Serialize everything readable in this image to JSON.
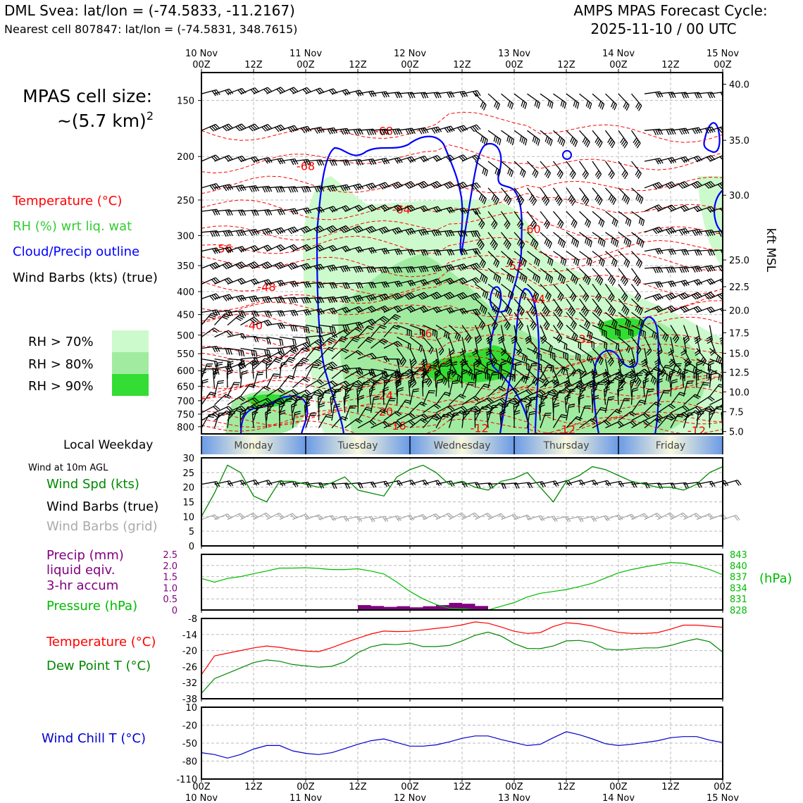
{
  "header": {
    "title": "DML Svea: lat/lon = (-74.5833, -11.2167)",
    "subtitle": "Nearest cell 807847: lat/lon = (-74.5831, 348.7615)",
    "cycle_line1": "AMPS MPAS Forecast Cycle:",
    "cycle_line2": "2025-11-10 / 00 UTC"
  },
  "left_legend": {
    "cell_size_line1": "MPAS cell size:",
    "cell_size_line2": "~(5.7 km)",
    "cell_size_exp": "2",
    "temperature": "Temperature (°C)",
    "rh": "RH (%) wrt liq. wat",
    "cloud": "Cloud/Precip outline",
    "wind": "Wind Barbs (kts) (true)",
    "rh70": "RH > 70%",
    "rh80": "RH > 80%",
    "rh90": "RH > 90%",
    "rh_colors": [
      "#ccfacc",
      "#a0eba0",
      "#33dd33"
    ],
    "local_weekday": "Local Weekday",
    "wind10m": "Wind at 10m AGL",
    "wind_spd": "Wind Spd (kts)",
    "wind_barbs_true": "Wind Barbs (true)",
    "wind_barbs_grid": "Wind Barbs (grid)",
    "precip1": "Precip (mm)",
    "precip2": "liquid eqiv.",
    "precip3": "3-hr accum",
    "pressure": "Pressure (hPa)",
    "temp2": "Temperature (°C)",
    "dew": "Dew Point T (°C)",
    "chill": "Wind Chill T (°C)"
  },
  "colors": {
    "temperature": "#ff0000",
    "rh_label": "#33cc33",
    "cloud": "#0000ff",
    "wind_spd": "#008800",
    "barbs_grid": "#aaaaaa",
    "precip": "#800080",
    "pressure": "#00bb00",
    "dew": "#008800",
    "chill": "#0000cc"
  },
  "chart_data": [
    {
      "type": "heatmap",
      "name": "cross-section",
      "x_ticks_top": [
        {
          "l1": "10 Nov",
          "l2": "00Z",
          "h": 0
        },
        {
          "l1": "",
          "l2": "12Z",
          "h": 12
        },
        {
          "l1": "11 Nov",
          "l2": "00Z",
          "h": 24
        },
        {
          "l1": "",
          "l2": "12Z",
          "h": 36
        },
        {
          "l1": "12 Nov",
          "l2": "00Z",
          "h": 48
        },
        {
          "l1": "",
          "l2": "12Z",
          "h": 60
        },
        {
          "l1": "13 Nov",
          "l2": "00Z",
          "h": 72
        },
        {
          "l1": "",
          "l2": "12Z",
          "h": 84
        },
        {
          "l1": "14 Nov",
          "l2": "00Z",
          "h": 96
        },
        {
          "l1": "",
          "l2": "12Z",
          "h": 108
        },
        {
          "l1": "15 Nov",
          "l2": "00Z",
          "h": 120
        }
      ],
      "xlim_hours": [
        0,
        120
      ],
      "y_pressure_ticks": [
        150,
        200,
        250,
        300,
        350,
        400,
        450,
        500,
        550,
        600,
        650,
        700,
        750,
        800
      ],
      "y_pressure_range": [
        130,
        830
      ],
      "y_right_label": "kft MSL",
      "y_right_ticks": [
        {
          "label": "40.0",
          "p": 138
        },
        {
          "label": "35.0",
          "p": 184
        },
        {
          "label": "30.0",
          "p": 244
        },
        {
          "label": "25.0",
          "p": 340
        },
        {
          "label": "22.5",
          "p": 390
        },
        {
          "label": "20.0",
          "p": 440
        },
        {
          "label": "17.5",
          "p": 494
        },
        {
          "label": "15.0",
          "p": 549
        },
        {
          "label": "12.5",
          "p": 605
        },
        {
          "label": "10.0",
          "p": 669
        },
        {
          "label": "7.5",
          "p": 741
        },
        {
          "label": "5.0",
          "p": 820
        }
      ],
      "temperature_labels": [
        {
          "text": "-68",
          "h": 24,
          "p": 210
        },
        {
          "text": "-68",
          "h": 42,
          "p": 175
        },
        {
          "text": "-64",
          "h": 46,
          "p": 262
        },
        {
          "text": "-60",
          "h": 76,
          "p": 290
        },
        {
          "text": "-56",
          "h": 5,
          "p": 320
        },
        {
          "text": "-52",
          "h": 72,
          "p": 350
        },
        {
          "text": "-48",
          "h": 15,
          "p": 390
        },
        {
          "text": "-44",
          "h": 77,
          "p": 415
        },
        {
          "text": "-40",
          "h": 12,
          "p": 475
        },
        {
          "text": "-36",
          "h": 51,
          "p": 495
        },
        {
          "text": "-32",
          "h": 88,
          "p": 510
        },
        {
          "text": "-28",
          "h": 51,
          "p": 590
        },
        {
          "text": "-24",
          "h": 42,
          "p": 680
        },
        {
          "text": "-20",
          "h": 42,
          "p": 740
        },
        {
          "text": "-16",
          "h": 45,
          "p": 795
        },
        {
          "text": "-12",
          "h": 64,
          "p": 805
        },
        {
          "text": "-12",
          "h": 84,
          "p": 810
        },
        {
          "text": "-12",
          "h": 114,
          "p": 815
        }
      ]
    },
    {
      "type": "line",
      "name": "wind10m",
      "ylim": [
        0,
        30
      ],
      "y_ticks": [
        0,
        5,
        10,
        15,
        20,
        25,
        30
      ],
      "x_hours": [
        0,
        3,
        6,
        9,
        12,
        15,
        18,
        21,
        24,
        27,
        30,
        33,
        36,
        39,
        42,
        45,
        48,
        51,
        54,
        57,
        60,
        63,
        66,
        69,
        72,
        75,
        78,
        81,
        84,
        87,
        90,
        93,
        96,
        99,
        102,
        105,
        108,
        111,
        114,
        117,
        120
      ],
      "series": [
        {
          "values": [
            10,
            18,
            27.5,
            25,
            17,
            15,
            22,
            22,
            21,
            20,
            21.5,
            23.5,
            19,
            18,
            17,
            23.5,
            26,
            27.5,
            25,
            21,
            22,
            20,
            19,
            22,
            23,
            25,
            20,
            15,
            22,
            24,
            27,
            26,
            24,
            22,
            21,
            20,
            20,
            19,
            21,
            25,
            27
          ]
        }
      ]
    },
    {
      "type": "bar",
      "name": "precip-pressure",
      "precip_ylim": [
        0,
        2.5
      ],
      "precip_ticks": [
        "0",
        "0.5",
        "1.0",
        "1.5",
        "2.0",
        "2.5"
      ],
      "pressure_ylim": [
        828,
        843
      ],
      "pressure_ticks": [
        "828",
        "831",
        "834",
        "837",
        "840",
        "843"
      ],
      "pressure_label": "(hPa)",
      "precip_bars": [
        {
          "h": 36,
          "v": 0.22
        },
        {
          "h": 39,
          "v": 0.18
        },
        {
          "h": 42,
          "v": 0.14
        },
        {
          "h": 45,
          "v": 0.17
        },
        {
          "h": 48,
          "v": 0.12
        },
        {
          "h": 51,
          "v": 0.17
        },
        {
          "h": 54,
          "v": 0.22
        },
        {
          "h": 57,
          "v": 0.32
        },
        {
          "h": 60,
          "v": 0.28
        },
        {
          "h": 63,
          "v": 0.18
        }
      ],
      "pressure_x": [
        0,
        3,
        6,
        9,
        12,
        15,
        18,
        21,
        24,
        27,
        30,
        33,
        36,
        39,
        42,
        45,
        48,
        51,
        54,
        57,
        60,
        63,
        66,
        69,
        72,
        75,
        78,
        81,
        84,
        87,
        90,
        93,
        96,
        99,
        102,
        105,
        108,
        111,
        114,
        117,
        120
      ],
      "pressure_values": [
        836.5,
        835.5,
        836.5,
        837,
        837.8,
        838.5,
        839.3,
        839.3,
        839.4,
        839.2,
        838.9,
        838.9,
        839.1,
        838.5,
        837.7,
        835.5,
        833,
        831,
        829.5,
        828.5,
        828.3,
        828.1,
        828,
        829,
        830,
        831.5,
        832.5,
        833,
        833.5,
        834.3,
        835.2,
        836.6,
        838,
        838.9,
        839.6,
        840.2,
        840.8,
        840.6,
        839.9,
        838.9,
        837.5
      ]
    },
    {
      "type": "line",
      "name": "temperature-dewpoint",
      "ylim": [
        -38,
        -8
      ],
      "y_ticks": [
        -8,
        -14,
        -20,
        -26,
        -32,
        -38
      ],
      "x_hours": [
        0,
        3,
        6,
        9,
        12,
        15,
        18,
        21,
        24,
        27,
        30,
        33,
        36,
        39,
        42,
        45,
        48,
        51,
        54,
        57,
        60,
        63,
        66,
        69,
        72,
        75,
        78,
        81,
        84,
        87,
        90,
        93,
        96,
        99,
        102,
        105,
        108,
        111,
        114,
        117,
        120
      ],
      "series": [
        {
          "name": "Temperature",
          "values": [
            -29,
            -22,
            -21,
            -20,
            -19,
            -18.3,
            -18.8,
            -19.6,
            -20.2,
            -20.4,
            -18.9,
            -17.1,
            -15.4,
            -13.8,
            -12.7,
            -12.9,
            -12.8,
            -12.3,
            -11.7,
            -11.2,
            -10.4,
            -9.3,
            -9.8,
            -11.2,
            -12.8,
            -13.6,
            -13.3,
            -11,
            -9.6,
            -10,
            -10.8,
            -12.1,
            -13.2,
            -13.6,
            -13.6,
            -13.3,
            -12,
            -10.5,
            -10.5,
            -10.9,
            -11.3
          ]
        },
        {
          "name": "Dew Point",
          "values": [
            -36,
            -30.5,
            -28.5,
            -26.5,
            -24.5,
            -23.5,
            -24,
            -25.2,
            -25.7,
            -26.2,
            -25.9,
            -24.2,
            -20.8,
            -18.6,
            -17.6,
            -17.8,
            -17.2,
            -18.5,
            -18.5,
            -18.1,
            -16.4,
            -14.3,
            -13.1,
            -14.6,
            -17.4,
            -19.2,
            -19.3,
            -18.3,
            -16.4,
            -16.2,
            -17,
            -19.4,
            -19.8,
            -19.4,
            -19,
            -19,
            -18.1,
            -16.7,
            -15.6,
            -16.7,
            -20.6
          ]
        }
      ]
    },
    {
      "type": "line",
      "name": "wind-chill",
      "ylim": [
        -110,
        10
      ],
      "y_ticks": [
        "10",
        "-20",
        "-50",
        "-80",
        "-110"
      ],
      "x_ticks_bottom": [
        {
          "l1": "00Z",
          "l2": "10 Nov",
          "h": 0
        },
        {
          "l1": "12Z",
          "l2": "",
          "h": 12
        },
        {
          "l1": "00Z",
          "l2": "11 Nov",
          "h": 24
        },
        {
          "l1": "12Z",
          "l2": "",
          "h": 36
        },
        {
          "l1": "00Z",
          "l2": "12 Nov",
          "h": 48
        },
        {
          "l1": "12Z",
          "l2": "",
          "h": 60
        },
        {
          "l1": "00Z",
          "l2": "13 Nov",
          "h": 72
        },
        {
          "l1": "12Z",
          "l2": "",
          "h": 84
        },
        {
          "l1": "00Z",
          "l2": "14 Nov",
          "h": 96
        },
        {
          "l1": "12Z",
          "l2": "",
          "h": 108
        },
        {
          "l1": "00Z",
          "l2": "15 Nov",
          "h": 120
        }
      ],
      "x_hours": [
        0,
        3,
        6,
        9,
        12,
        15,
        18,
        21,
        24,
        27,
        30,
        33,
        36,
        39,
        42,
        45,
        48,
        51,
        54,
        57,
        60,
        63,
        66,
        69,
        72,
        75,
        78,
        81,
        84,
        87,
        90,
        93,
        96,
        99,
        102,
        105,
        108,
        111,
        114,
        117,
        120
      ],
      "series": [
        {
          "name": "Wind Chill",
          "values": [
            -66,
            -69,
            -75,
            -69,
            -60,
            -54,
            -54,
            -63,
            -67,
            -69,
            -66,
            -59,
            -52,
            -46,
            -43,
            -49,
            -55,
            -55,
            -53,
            -48,
            -42,
            -38,
            -38,
            -44,
            -49,
            -54,
            -52,
            -41,
            -31,
            -36,
            -43,
            -51,
            -54,
            -52,
            -49,
            -46,
            -41,
            -39,
            -39,
            -45,
            -49
          ]
        }
      ]
    }
  ],
  "weekday_band": {
    "days": [
      "Monday",
      "Tuesday",
      "Wednesday",
      "Thursday",
      "Friday"
    ],
    "boundaries_hours": [
      0,
      24,
      48,
      72,
      96,
      120
    ]
  }
}
